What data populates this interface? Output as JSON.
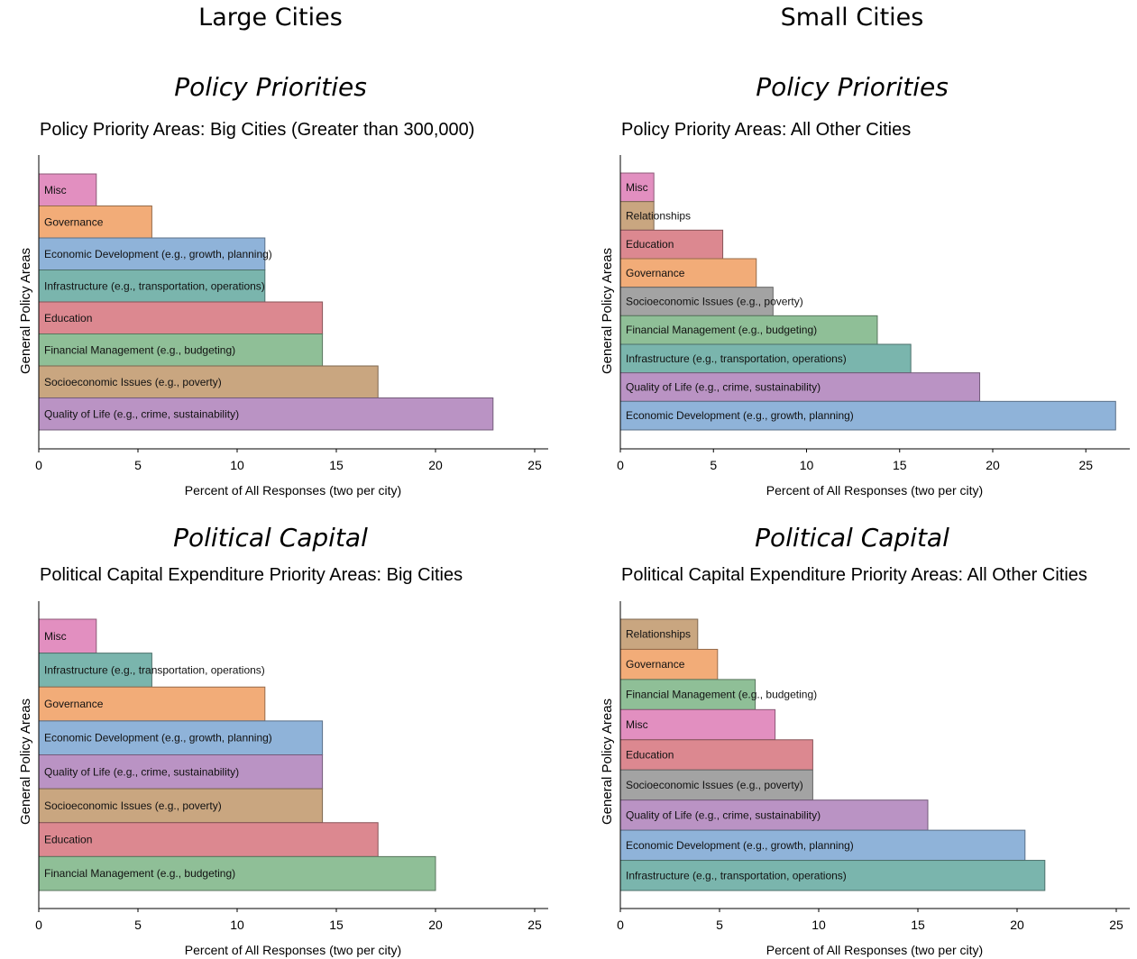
{
  "headers": {
    "large": "Large Cities",
    "small": "Small Cities"
  },
  "sections": {
    "policy": "Policy Priorities",
    "capital": "Political Capital"
  },
  "colors": {
    "Misc": "#e28fc0",
    "Governance": "#f2ac78",
    "Economic Development": "#8fb3d9",
    "Infrastructure": "#7ab5ad",
    "Education": "#dc8890",
    "Financial Management": "#8fbf97",
    "Socioeconomic Issues": "#c9a680",
    "Quality of Life": "#ba93c4",
    "Relationships": "#c9a680",
    "SocioeconomicGray": "#a3a3a3"
  },
  "chart_data": [
    {
      "type": "bar",
      "orientation": "horizontal",
      "title": "Policy Priority Areas: Big Cities (Greater than 300,000)",
      "xlabel": "Percent of All Responses (two per city)",
      "ylabel": "General Policy Areas",
      "xlim": [
        0,
        25
      ],
      "xticks": [
        "0",
        "5",
        "10",
        "15",
        "20",
        "25"
      ],
      "categories": [
        "Misc",
        "Governance",
        "Economic Development (e.g., growth, planning)",
        "Infrastructure (e.g., transportation, operations)",
        "Education",
        "Financial Management (e.g., budgeting)",
        "Socioeconomic Issues (e.g., poverty)",
        "Quality of Life (e.g., crime, sustainability)"
      ],
      "values": [
        2.9,
        5.7,
        11.4,
        11.4,
        14.3,
        14.3,
        17.1,
        22.9
      ],
      "color_keys": [
        "Misc",
        "Governance",
        "Economic Development",
        "Infrastructure",
        "Education",
        "Financial Management",
        "Socioeconomic Issues",
        "Quality of Life"
      ]
    },
    {
      "type": "bar",
      "orientation": "horizontal",
      "title": "Policy Priority Areas: All Other Cities",
      "xlabel": "Percent of All Responses (two per city)",
      "ylabel": "General Policy Areas",
      "xlim": [
        0,
        26.5
      ],
      "xticks": [
        "0",
        "5",
        "10",
        "15",
        "20",
        "25"
      ],
      "categories": [
        "Misc",
        "Relationships",
        "Education",
        "Governance",
        "Socioeconomic Issues (e.g., poverty)",
        "Financial Management (e.g., budgeting)",
        "Infrastructure (e.g., transportation, operations)",
        "Quality of Life (e.g., crime, sustainability)",
        "Economic Development (e.g., growth, planning)"
      ],
      "values": [
        1.8,
        1.8,
        5.5,
        7.3,
        8.2,
        13.8,
        15.6,
        19.3,
        26.6
      ],
      "color_keys": [
        "Misc",
        "Relationships",
        "Education",
        "Governance",
        "SocioeconomicGray",
        "Financial Management",
        "Infrastructure",
        "Quality of Life",
        "Economic Development"
      ]
    },
    {
      "type": "bar",
      "orientation": "horizontal",
      "title": "Political Capital Expenditure Priority Areas: Big Cities",
      "xlabel": "Percent of All Responses (two per city)",
      "ylabel": "General Policy Areas",
      "xlim": [
        0,
        25
      ],
      "xticks": [
        "0",
        "5",
        "10",
        "15",
        "20",
        "25"
      ],
      "categories": [
        "Misc",
        "Infrastructure (e.g., transportation, operations)",
        "Governance",
        "Economic Development (e.g., growth, planning)",
        "Quality of Life (e.g., crime, sustainability)",
        "Socioeconomic Issues (e.g., poverty)",
        "Education",
        "Financial Management (e.g., budgeting)"
      ],
      "values": [
        2.9,
        5.7,
        11.4,
        14.3,
        14.3,
        14.3,
        17.1,
        20.0
      ],
      "color_keys": [
        "Misc",
        "Infrastructure",
        "Governance",
        "Economic Development",
        "Quality of Life",
        "Socioeconomic Issues",
        "Education",
        "Financial Management"
      ]
    },
    {
      "type": "bar",
      "orientation": "horizontal",
      "title": "Political Capital Expenditure Priority Areas: All Other Cities",
      "xlabel": "Percent of All Responses (two per city)",
      "ylabel": "General Policy Areas",
      "xlim": [
        0,
        25
      ],
      "xticks": [
        "0",
        "5",
        "10",
        "15",
        "20",
        "25"
      ],
      "categories": [
        "Relationships",
        "Governance",
        "Financial Management (e.g., budgeting)",
        "Misc",
        "Education",
        "Socioeconomic Issues (e.g., poverty)",
        "Quality of Life (e.g., crime, sustainability)",
        "Economic Development (e.g., growth, planning)",
        "Infrastructure (e.g., transportation, operations)"
      ],
      "values": [
        3.9,
        4.9,
        6.8,
        7.8,
        9.7,
        9.7,
        15.5,
        20.4,
        21.4
      ],
      "color_keys": [
        "Relationships",
        "Governance",
        "Financial Management",
        "Misc",
        "Education",
        "SocioeconomicGray",
        "Quality of Life",
        "Economic Development",
        "Infrastructure"
      ]
    }
  ]
}
